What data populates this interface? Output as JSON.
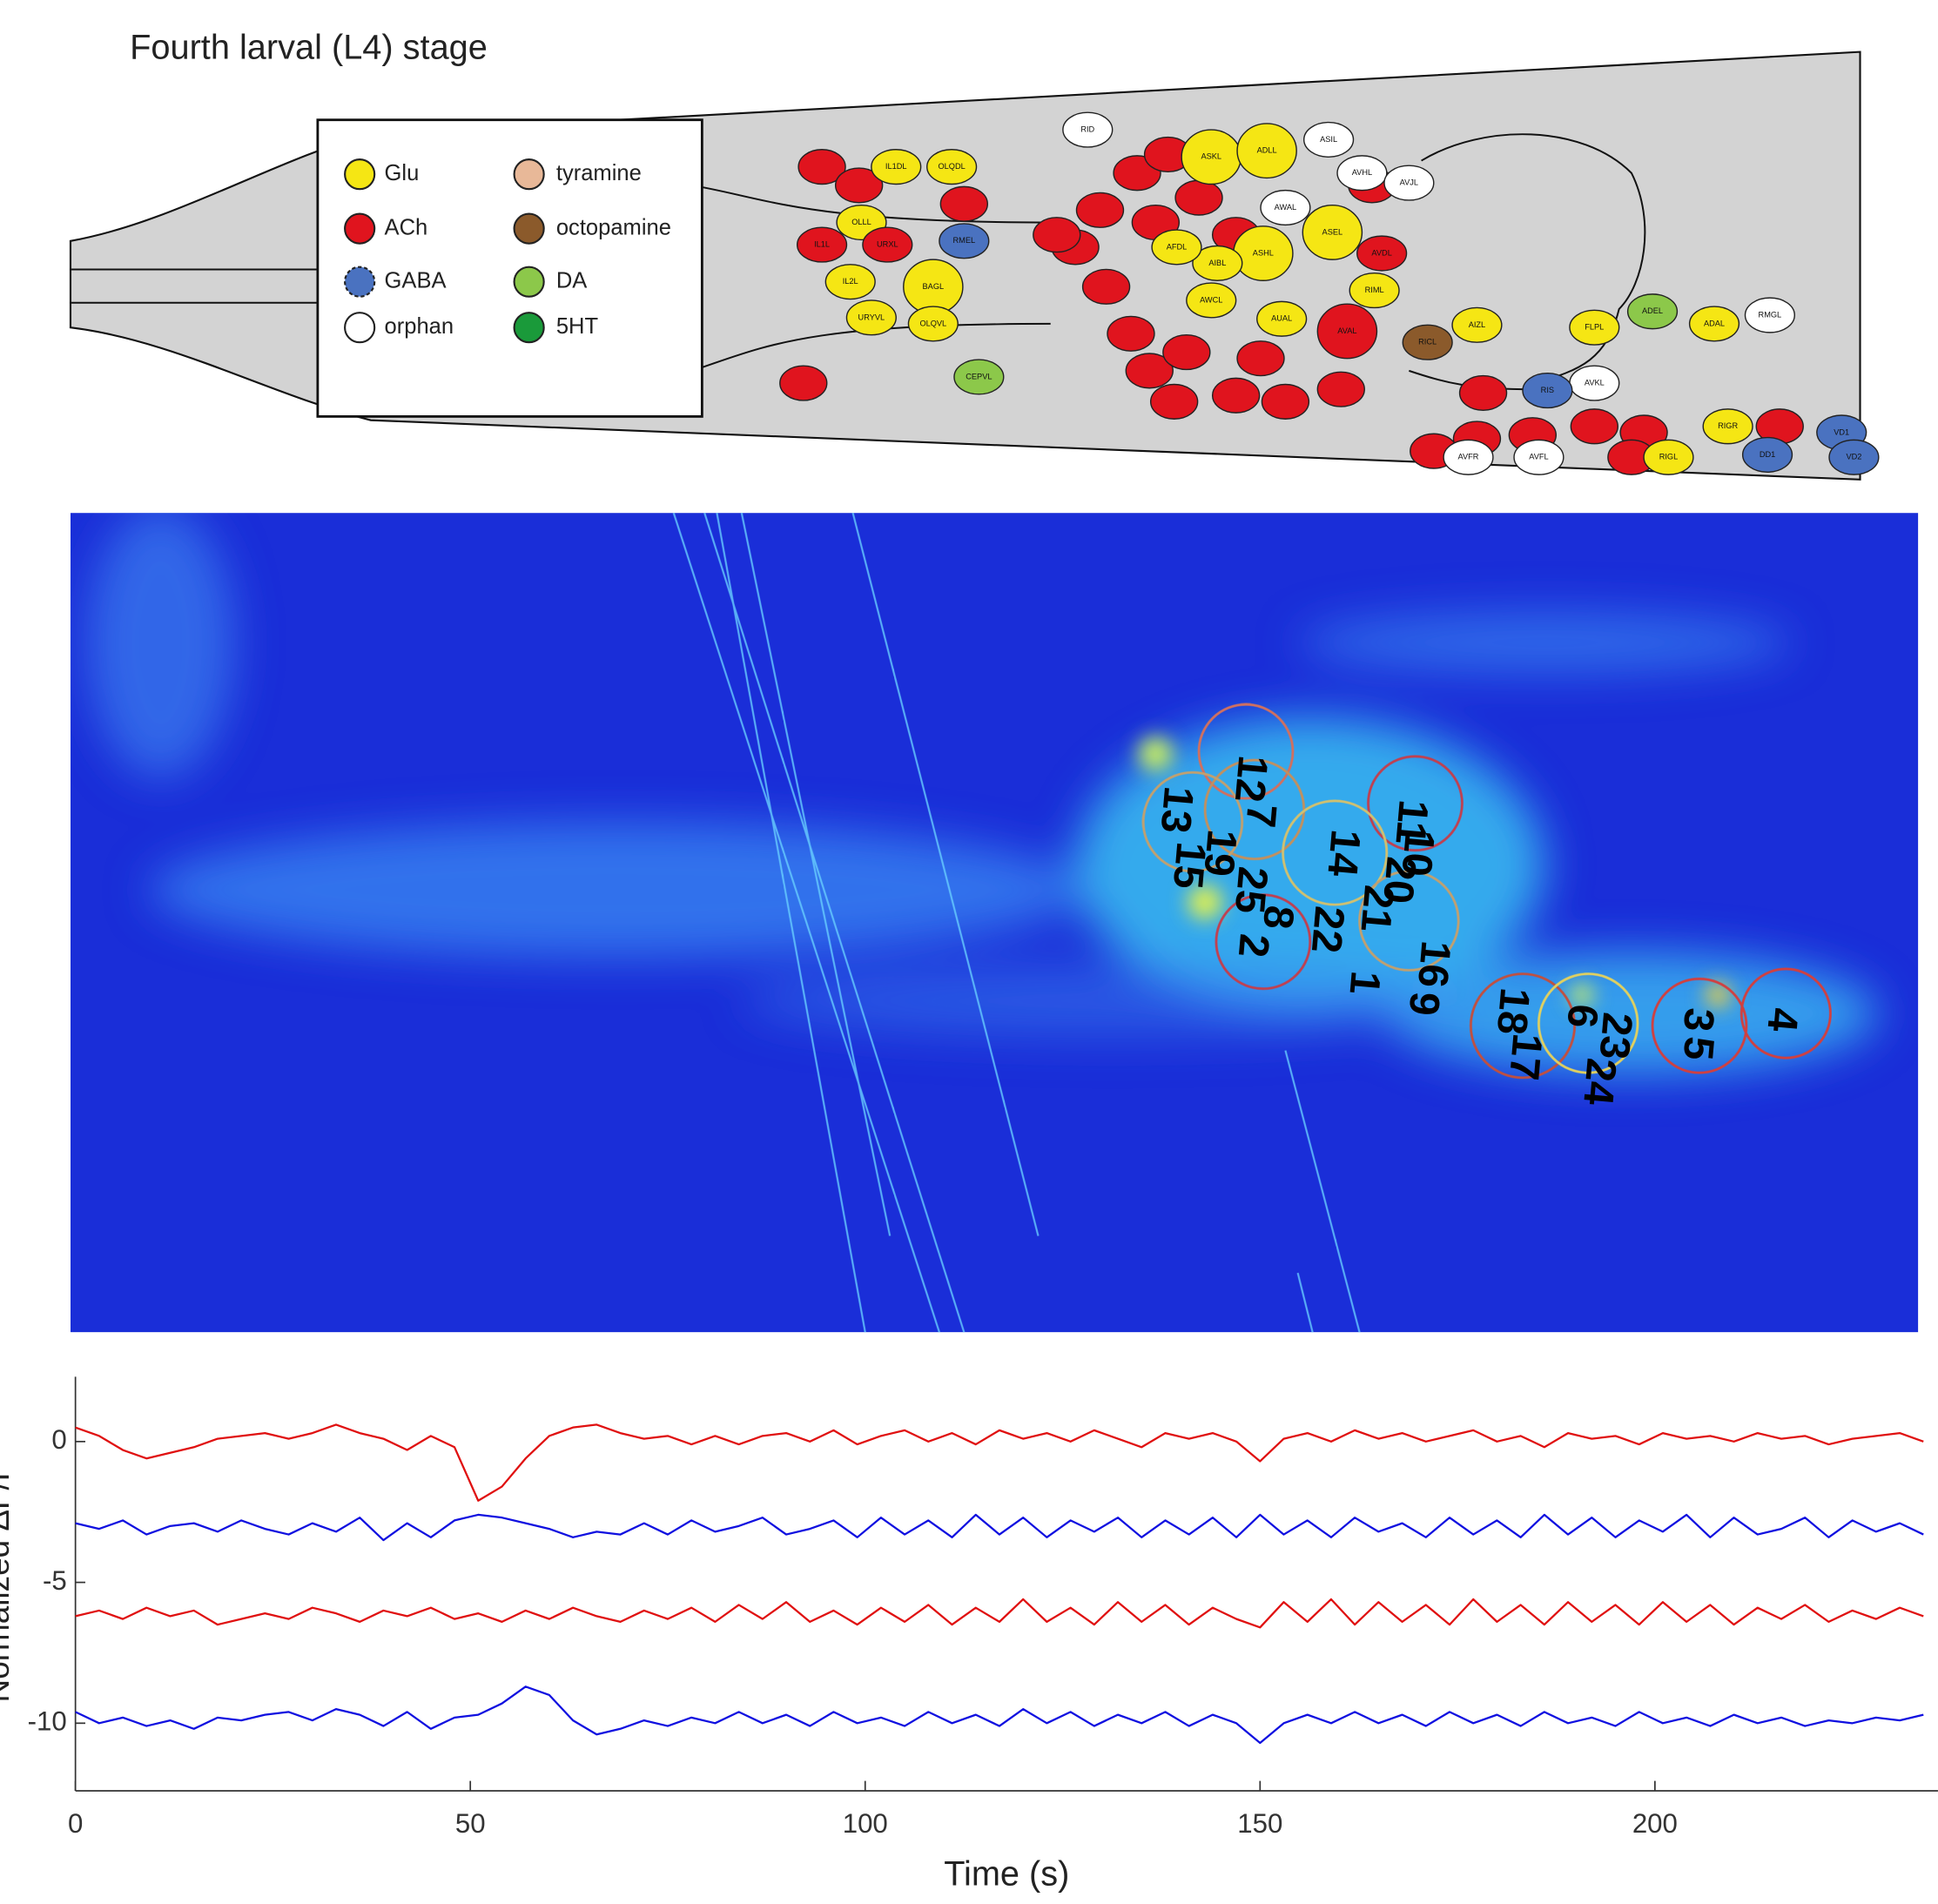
{
  "diagram": {
    "title": "Fourth larval (L4) stage",
    "legend": [
      {
        "label": "Glu",
        "color": "#f5e614"
      },
      {
        "label": "ACh",
        "color": "#e0141e"
      },
      {
        "label": "GABA",
        "color": "#4a72c0"
      },
      {
        "label": "orphan",
        "color": "#ffffff"
      },
      {
        "label": "tyramine",
        "color": "#e8b898"
      },
      {
        "label": "octopamine",
        "color": "#8b5a2b"
      },
      {
        "label": "DA",
        "color": "#8cc84a"
      },
      {
        "label": "5HT",
        "color": "#1a9a3a"
      }
    ],
    "nodes": [
      {
        "label": "ASKL",
        "color": "#f5e614"
      },
      {
        "label": "ADLL",
        "color": "#f5e614"
      },
      {
        "label": "ASIL",
        "color": "#ffffff"
      },
      {
        "label": "AVHL",
        "color": "#ffffff"
      },
      {
        "label": "AVJL",
        "color": "#ffffff"
      },
      {
        "label": "AWAL",
        "color": "#ffffff"
      },
      {
        "label": "ASEL",
        "color": "#f5e614"
      },
      {
        "label": "ASHL",
        "color": "#f5e614"
      },
      {
        "label": "AIBL",
        "color": "#f5e614"
      },
      {
        "label": "AFDL",
        "color": "#f5e614"
      },
      {
        "label": "AWCL",
        "color": "#f5e614"
      },
      {
        "label": "AUAL",
        "color": "#f5e614"
      },
      {
        "label": "RIML",
        "color": "#f5e614"
      },
      {
        "label": "AVAL",
        "color": "#e0141e"
      },
      {
        "label": "RICL",
        "color": "#8b5a2b"
      },
      {
        "label": "AVDL",
        "color": "#e0141e"
      },
      {
        "label": "AIZL",
        "color": "#f5e614"
      },
      {
        "label": "FLPL",
        "color": "#f5e614"
      },
      {
        "label": "ADEL",
        "color": "#8cc84a"
      },
      {
        "label": "ADAL",
        "color": "#f5e614"
      },
      {
        "label": "RMGL",
        "color": "#ffffff"
      },
      {
        "label": "AVKL",
        "color": "#ffffff"
      },
      {
        "label": "RIS",
        "color": "#4a72c0"
      },
      {
        "label": "AVFR",
        "color": "#ffffff"
      },
      {
        "label": "AVFL",
        "color": "#ffffff"
      },
      {
        "label": "RIGL",
        "color": "#f5e614"
      },
      {
        "label": "RIGR",
        "color": "#f5e614"
      },
      {
        "label": "DD1",
        "color": "#4a72c0"
      },
      {
        "label": "VD1",
        "color": "#4a72c0"
      },
      {
        "label": "VD2",
        "color": "#4a72c0"
      },
      {
        "label": "RID",
        "color": "#ffffff"
      },
      {
        "label": "OLLL",
        "color": "#f5e614"
      },
      {
        "label": "IL1L",
        "color": "#e0141e"
      },
      {
        "label": "IL2L",
        "color": "#f5e614"
      },
      {
        "label": "BAGL",
        "color": "#f5e614"
      },
      {
        "label": "URYVL",
        "color": "#f5e614"
      },
      {
        "label": "OLQVL",
        "color": "#f5e614"
      },
      {
        "label": "CEPVL",
        "color": "#8cc84a"
      },
      {
        "label": "IL1DL",
        "color": "#f5e614"
      },
      {
        "label": "OLQDL",
        "color": "#f5e614"
      },
      {
        "label": "URXL",
        "color": "#e0141e"
      },
      {
        "label": "RMEL",
        "color": "#4a72c0"
      }
    ]
  },
  "image": {
    "roi_labels": [
      "13",
      "15",
      "12",
      "7",
      "19",
      "25",
      "8",
      "2",
      "22",
      "14",
      "11",
      "10",
      "20",
      "21",
      "1",
      "16",
      "9",
      "18",
      "17",
      "6",
      "23",
      "24",
      "3",
      "5",
      "4"
    ]
  },
  "chart_data": {
    "type": "line",
    "xlabel": "Time (s)",
    "ylabel": "Normalized ΔF/F",
    "xlim": [
      0,
      236
    ],
    "ylim": [
      -12.4,
      2.3
    ],
    "xticks": [
      0,
      50,
      100,
      150,
      200
    ],
    "yticks": [
      0,
      -5,
      -10
    ],
    "x": [
      0,
      3,
      6,
      9,
      12,
      15,
      18,
      21,
      24,
      27,
      30,
      33,
      36,
      39,
      42,
      45,
      48,
      51,
      54,
      57,
      60,
      63,
      66,
      69,
      72,
      75,
      78,
      81,
      84,
      87,
      90,
      93,
      96,
      99,
      102,
      105,
      108,
      111,
      114,
      117,
      120,
      123,
      126,
      129,
      132,
      135,
      138,
      141,
      144,
      147,
      150,
      153,
      156,
      159,
      162,
      165,
      168,
      171,
      174,
      177,
      180,
      183,
      186,
      189,
      192,
      195,
      198,
      201,
      204,
      207,
      210,
      213,
      216,
      219,
      222,
      225,
      228,
      231,
      234
    ],
    "series": [
      {
        "color": "#e01010",
        "values": [
          0.5,
          0.2,
          -0.3,
          -0.6,
          -0.4,
          -0.2,
          0.1,
          0.2,
          0.3,
          0.1,
          0.3,
          0.6,
          0.3,
          0.1,
          -0.3,
          0.2,
          -0.2,
          -2.1,
          -1.6,
          -0.6,
          0.2,
          0.5,
          0.6,
          0.3,
          0.1,
          0.2,
          -0.1,
          0.2,
          -0.1,
          0.2,
          0.3,
          0.0,
          0.4,
          -0.1,
          0.2,
          0.4,
          0.0,
          0.3,
          -0.1,
          0.4,
          0.1,
          0.3,
          0.0,
          0.4,
          0.1,
          -0.2,
          0.3,
          0.1,
          0.3,
          0.0,
          -0.7,
          0.1,
          0.3,
          0.0,
          0.4,
          0.1,
          0.3,
          0.0,
          0.2,
          0.4,
          0.0,
          0.2,
          -0.2,
          0.3,
          0.1,
          0.2,
          -0.1,
          0.3,
          0.1,
          0.2,
          0.0,
          0.3,
          0.1,
          0.2,
          -0.1,
          0.1,
          0.2,
          0.3,
          0.0
        ]
      },
      {
        "color": "#1010e0",
        "values": [
          -2.9,
          -3.1,
          -2.8,
          -3.3,
          -3.0,
          -2.9,
          -3.2,
          -2.8,
          -3.1,
          -3.3,
          -2.9,
          -3.2,
          -2.7,
          -3.5,
          -2.9,
          -3.4,
          -2.8,
          -2.6,
          -2.7,
          -2.9,
          -3.1,
          -3.4,
          -3.2,
          -3.3,
          -2.9,
          -3.3,
          -2.8,
          -3.2,
          -3.0,
          -2.7,
          -3.3,
          -3.1,
          -2.8,
          -3.4,
          -2.7,
          -3.3,
          -2.8,
          -3.4,
          -2.6,
          -3.3,
          -2.7,
          -3.4,
          -2.8,
          -3.2,
          -2.7,
          -3.4,
          -2.8,
          -3.3,
          -2.7,
          -3.4,
          -2.6,
          -3.3,
          -2.8,
          -3.4,
          -2.7,
          -3.2,
          -2.9,
          -3.4,
          -2.7,
          -3.3,
          -2.8,
          -3.4,
          -2.6,
          -3.3,
          -2.7,
          -3.4,
          -2.8,
          -3.2,
          -2.6,
          -3.4,
          -2.7,
          -3.3,
          -3.1,
          -2.7,
          -3.4,
          -2.8,
          -3.2,
          -2.9,
          -3.3
        ]
      },
      {
        "color": "#e01010",
        "values": [
          -6.2,
          -6.0,
          -6.3,
          -5.9,
          -6.2,
          -6.0,
          -6.5,
          -6.3,
          -6.1,
          -6.3,
          -5.9,
          -6.1,
          -6.4,
          -6.0,
          -6.2,
          -5.9,
          -6.3,
          -6.1,
          -6.4,
          -6.0,
          -6.3,
          -5.9,
          -6.2,
          -6.4,
          -6.0,
          -6.3,
          -5.9,
          -6.4,
          -5.8,
          -6.3,
          -5.7,
          -6.4,
          -6.0,
          -6.5,
          -5.9,
          -6.4,
          -5.8,
          -6.5,
          -5.9,
          -6.4,
          -5.6,
          -6.4,
          -5.9,
          -6.5,
          -5.7,
          -6.4,
          -5.8,
          -6.5,
          -5.9,
          -6.3,
          -6.6,
          -5.7,
          -6.4,
          -5.6,
          -6.5,
          -5.7,
          -6.4,
          -5.8,
          -6.5,
          -5.6,
          -6.4,
          -5.8,
          -6.5,
          -5.7,
          -6.4,
          -5.8,
          -6.5,
          -5.7,
          -6.4,
          -5.8,
          -6.5,
          -5.9,
          -6.3,
          -5.8,
          -6.4,
          -6.0,
          -6.3,
          -5.9,
          -6.2
        ]
      },
      {
        "color": "#1010e0",
        "values": [
          -9.6,
          -10.0,
          -9.8,
          -10.1,
          -9.9,
          -10.2,
          -9.8,
          -9.9,
          -9.7,
          -9.6,
          -9.9,
          -9.5,
          -9.7,
          -10.1,
          -9.6,
          -10.2,
          -9.8,
          -9.7,
          -9.3,
          -8.7,
          -9.0,
          -9.9,
          -10.4,
          -10.2,
          -9.9,
          -10.1,
          -9.8,
          -10.0,
          -9.6,
          -10.0,
          -9.7,
          -10.1,
          -9.6,
          -10.0,
          -9.8,
          -10.1,
          -9.6,
          -10.0,
          -9.7,
          -10.1,
          -9.5,
          -10.0,
          -9.6,
          -10.1,
          -9.7,
          -10.0,
          -9.6,
          -10.1,
          -9.7,
          -10.0,
          -10.7,
          -10.0,
          -9.7,
          -10.0,
          -9.6,
          -10.0,
          -9.7,
          -10.1,
          -9.6,
          -10.0,
          -9.7,
          -10.1,
          -9.6,
          -10.0,
          -9.8,
          -10.1,
          -9.6,
          -10.0,
          -9.8,
          -10.1,
          -9.7,
          -10.0,
          -9.8,
          -10.1,
          -9.9,
          -10.0,
          -9.8,
          -9.9,
          -9.7
        ]
      }
    ]
  }
}
